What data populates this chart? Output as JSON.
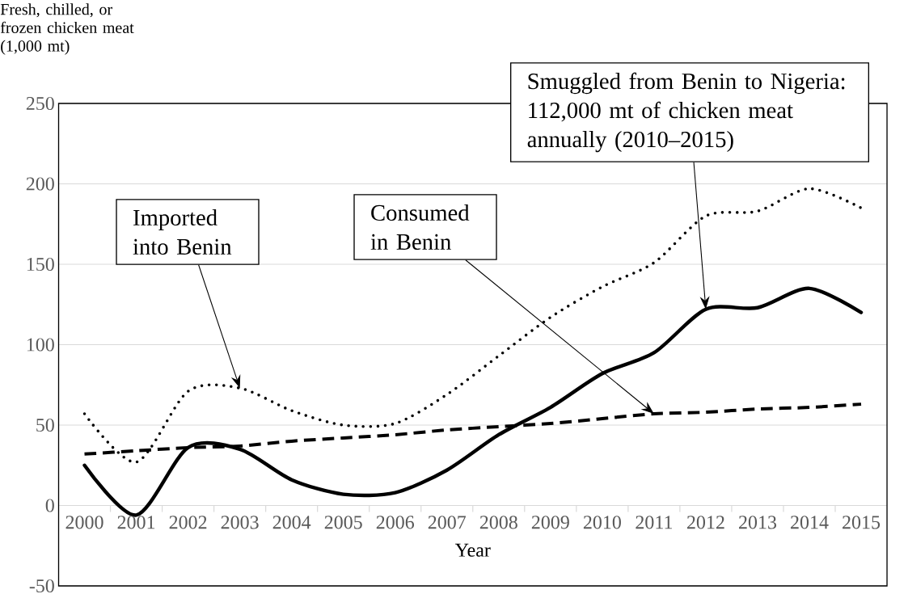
{
  "chart_data": {
    "type": "line",
    "ylabel": "Fresh, chilled, or frozen chicken meat (1,000 mt)",
    "xlabel": "Year",
    "categories": [
      "2000",
      "2001",
      "2002",
      "2003",
      "2004",
      "2005",
      "2006",
      "2007",
      "2008",
      "2009",
      "2010",
      "2011",
      "2012",
      "2013",
      "2014",
      "2015"
    ],
    "series": [
      {
        "name": "Imported into Benin",
        "color": "#000000",
        "line_style": "dotted",
        "values": [
          57,
          27,
          71,
          73,
          59,
          50,
          51,
          69,
          93,
          117,
          136,
          151,
          180,
          183,
          197,
          185
        ]
      },
      {
        "name": "Consumed in Benin",
        "color": "#000000",
        "line_style": "dashed",
        "values": [
          32,
          34,
          36,
          37,
          40,
          42,
          44,
          47,
          49,
          51,
          54,
          57,
          58,
          60,
          61,
          63
        ]
      },
      {
        "name": "Smuggled from Benin to Nigeria: 112,000 mt of chicken meat annually (2010–2015)",
        "color": "#000000",
        "line_style": "solid",
        "values": [
          25,
          -6,
          36,
          35,
          16,
          7,
          8,
          22,
          44,
          61,
          82,
          95,
          122,
          123,
          135,
          120
        ]
      }
    ],
    "ylim": [
      -50,
      250
    ],
    "yticks": [
      -50,
      0,
      50,
      100,
      150,
      200,
      250
    ],
    "grid": "y",
    "marker": "none"
  }
}
